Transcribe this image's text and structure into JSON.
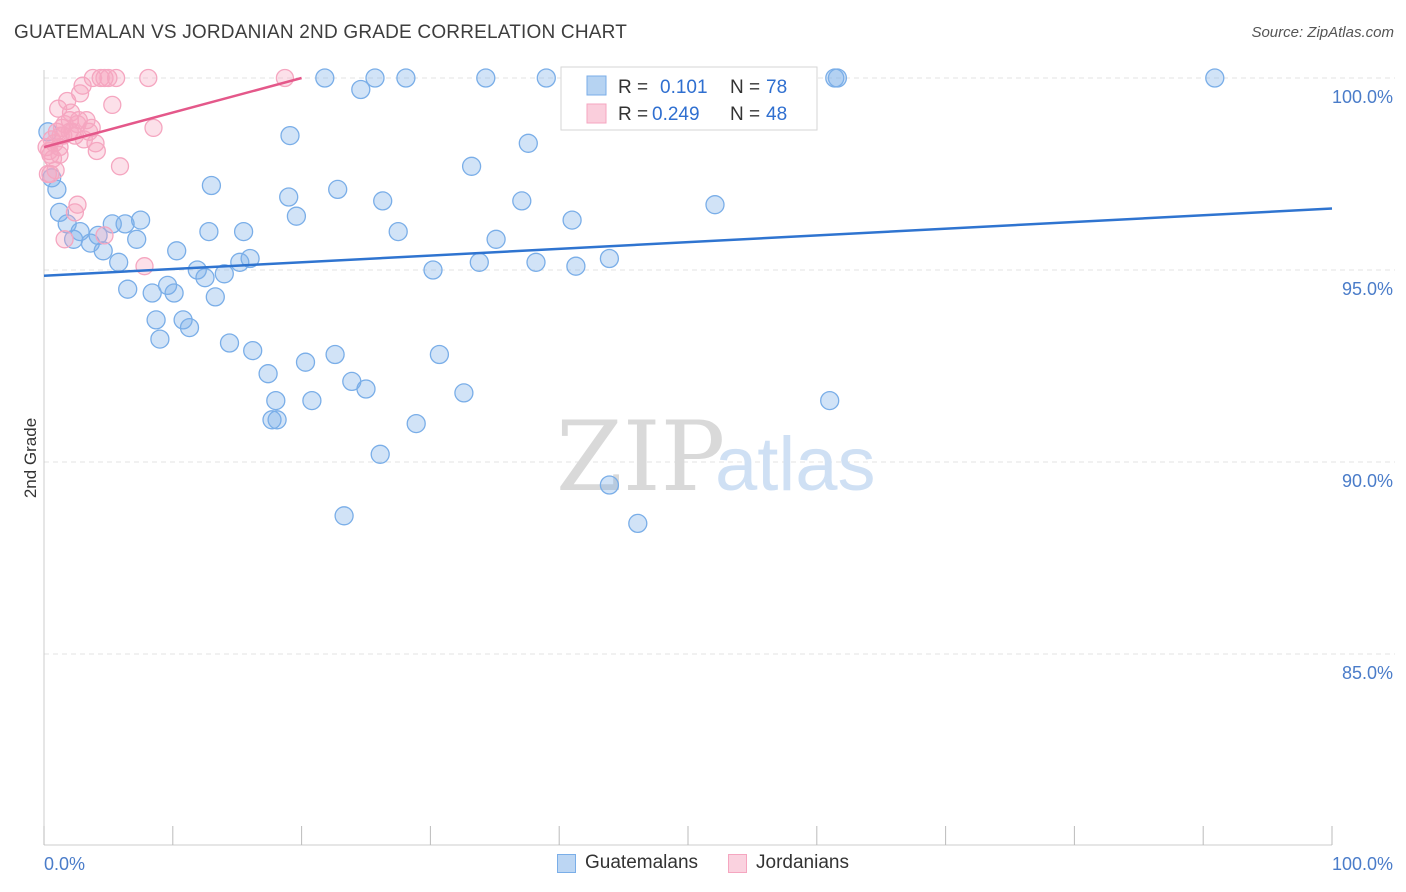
{
  "title": "GUATEMALAN VS JORDANIAN 2ND GRADE CORRELATION CHART",
  "source": "Source: ZipAtlas.com",
  "watermark": {
    "zip": "ZIP",
    "atlas": "atlas"
  },
  "chart_data": {
    "type": "scatter",
    "title": "GUATEMALAN VS JORDANIAN 2ND GRADE CORRELATION CHART",
    "xlabel": "",
    "ylabel": "2nd Grade",
    "xlim": [
      0,
      100
    ],
    "ylim": [
      80.5,
      100.3
    ],
    "x_tick_labels": [
      "0.0%",
      "100.0%"
    ],
    "y_ticks": [
      85,
      90,
      95,
      100
    ],
    "y_tick_labels": [
      "85.0%",
      "90.0%",
      "95.0%",
      "100.0%"
    ],
    "grid": true,
    "legend_position": "top-center",
    "series": [
      {
        "name": "Guatemalans",
        "color": "#7aaee8",
        "line_color": "#2f74d0",
        "R": "0.101",
        "N": "78",
        "trend": {
          "x": [
            0,
            100
          ],
          "y": [
            94.85,
            96.6
          ]
        },
        "points": [
          [
            0.3,
            98.6
          ],
          [
            0.6,
            97.4
          ],
          [
            1.0,
            97.1
          ],
          [
            1.2,
            96.5
          ],
          [
            1.8,
            96.2
          ],
          [
            2.3,
            95.8
          ],
          [
            2.8,
            96.0
          ],
          [
            3.6,
            95.7
          ],
          [
            4.2,
            95.9
          ],
          [
            4.6,
            95.5
          ],
          [
            5.3,
            96.2
          ],
          [
            6.3,
            96.2
          ],
          [
            7.2,
            95.8
          ],
          [
            7.5,
            96.3
          ],
          [
            5.8,
            95.2
          ],
          [
            6.5,
            94.5
          ],
          [
            8.4,
            94.4
          ],
          [
            9.6,
            94.6
          ],
          [
            10.1,
            94.4
          ],
          [
            10.3,
            95.5
          ],
          [
            11.9,
            95.0
          ],
          [
            12.5,
            94.8
          ],
          [
            14.0,
            94.9
          ],
          [
            13.0,
            97.2
          ],
          [
            12.8,
            96.0
          ],
          [
            15.2,
            95.2
          ],
          [
            15.5,
            96.0
          ],
          [
            16.0,
            95.3
          ],
          [
            8.7,
            93.7
          ],
          [
            9.0,
            93.2
          ],
          [
            10.8,
            93.7
          ],
          [
            11.3,
            93.5
          ],
          [
            13.3,
            94.3
          ],
          [
            14.4,
            93.1
          ],
          [
            16.2,
            92.9
          ],
          [
            17.4,
            92.3
          ],
          [
            17.7,
            91.1
          ],
          [
            18.0,
            91.6
          ],
          [
            18.1,
            91.1
          ],
          [
            19.1,
            98.5
          ],
          [
            19.0,
            96.9
          ],
          [
            19.6,
            96.4
          ],
          [
            20.3,
            92.6
          ],
          [
            20.8,
            91.6
          ],
          [
            21.8,
            100.0
          ],
          [
            22.6,
            92.8
          ],
          [
            22.8,
            97.1
          ],
          [
            23.3,
            88.6
          ],
          [
            23.9,
            92.1
          ],
          [
            24.6,
            99.7
          ],
          [
            25.0,
            91.9
          ],
          [
            25.7,
            100.0
          ],
          [
            26.3,
            96.8
          ],
          [
            26.1,
            90.2
          ],
          [
            27.5,
            96.0
          ],
          [
            28.1,
            100.0
          ],
          [
            28.9,
            91.0
          ],
          [
            30.2,
            95.0
          ],
          [
            30.7,
            92.8
          ],
          [
            32.6,
            91.8
          ],
          [
            33.2,
            97.7
          ],
          [
            34.3,
            100.0
          ],
          [
            35.1,
            95.8
          ],
          [
            33.8,
            95.2
          ],
          [
            37.1,
            96.8
          ],
          [
            37.6,
            98.3
          ],
          [
            39.0,
            100.0
          ],
          [
            38.2,
            95.2
          ],
          [
            41.0,
            96.3
          ],
          [
            41.3,
            95.1
          ],
          [
            43.9,
            89.4
          ],
          [
            43.9,
            95.3
          ],
          [
            46.1,
            88.4
          ],
          [
            52.1,
            96.7
          ],
          [
            61.4,
            100.0
          ],
          [
            61.6,
            100.0
          ],
          [
            61.0,
            91.6
          ],
          [
            90.9,
            100.0
          ]
        ]
      },
      {
        "name": "Jordanians",
        "color": "#f5a6c0",
        "line_color": "#e4588a",
        "R": "0.249",
        "N": "48",
        "trend": {
          "x": [
            0,
            20
          ],
          "y": [
            98.2,
            100.0
          ]
        },
        "points": [
          [
            0.2,
            98.2
          ],
          [
            0.3,
            97.5
          ],
          [
            0.5,
            98.0
          ],
          [
            0.6,
            98.4
          ],
          [
            0.7,
            97.9
          ],
          [
            0.9,
            97.6
          ],
          [
            1.0,
            98.6
          ],
          [
            1.1,
            99.2
          ],
          [
            1.2,
            98.0
          ],
          [
            1.4,
            98.7
          ],
          [
            1.5,
            98.5
          ],
          [
            1.6,
            98.8
          ],
          [
            1.8,
            99.4
          ],
          [
            2.0,
            98.9
          ],
          [
            2.1,
            99.1
          ],
          [
            2.2,
            98.6
          ],
          [
            2.4,
            98.5
          ],
          [
            2.6,
            98.8
          ],
          [
            2.8,
            99.6
          ],
          [
            3.0,
            99.8
          ],
          [
            3.3,
            98.9
          ],
          [
            3.5,
            98.6
          ],
          [
            3.7,
            98.7
          ],
          [
            3.8,
            100.0
          ],
          [
            4.0,
            98.3
          ],
          [
            4.1,
            98.1
          ],
          [
            4.4,
            100.0
          ],
          [
            4.7,
            100.0
          ],
          [
            5.0,
            100.0
          ],
          [
            5.3,
            99.3
          ],
          [
            5.6,
            100.0
          ],
          [
            5.9,
            97.7
          ],
          [
            2.4,
            96.5
          ],
          [
            1.6,
            95.8
          ],
          [
            2.6,
            96.7
          ],
          [
            4.7,
            95.9
          ],
          [
            7.8,
            95.1
          ],
          [
            8.1,
            100.0
          ],
          [
            8.5,
            98.7
          ],
          [
            18.7,
            100.0
          ],
          [
            0.4,
            98.1
          ],
          [
            0.8,
            98.3
          ],
          [
            1.3,
            98.5
          ],
          [
            2.0,
            98.6
          ],
          [
            2.7,
            98.9
          ],
          [
            0.5,
            97.5
          ],
          [
            1.2,
            98.2
          ],
          [
            3.1,
            98.4
          ]
        ]
      }
    ]
  }
}
